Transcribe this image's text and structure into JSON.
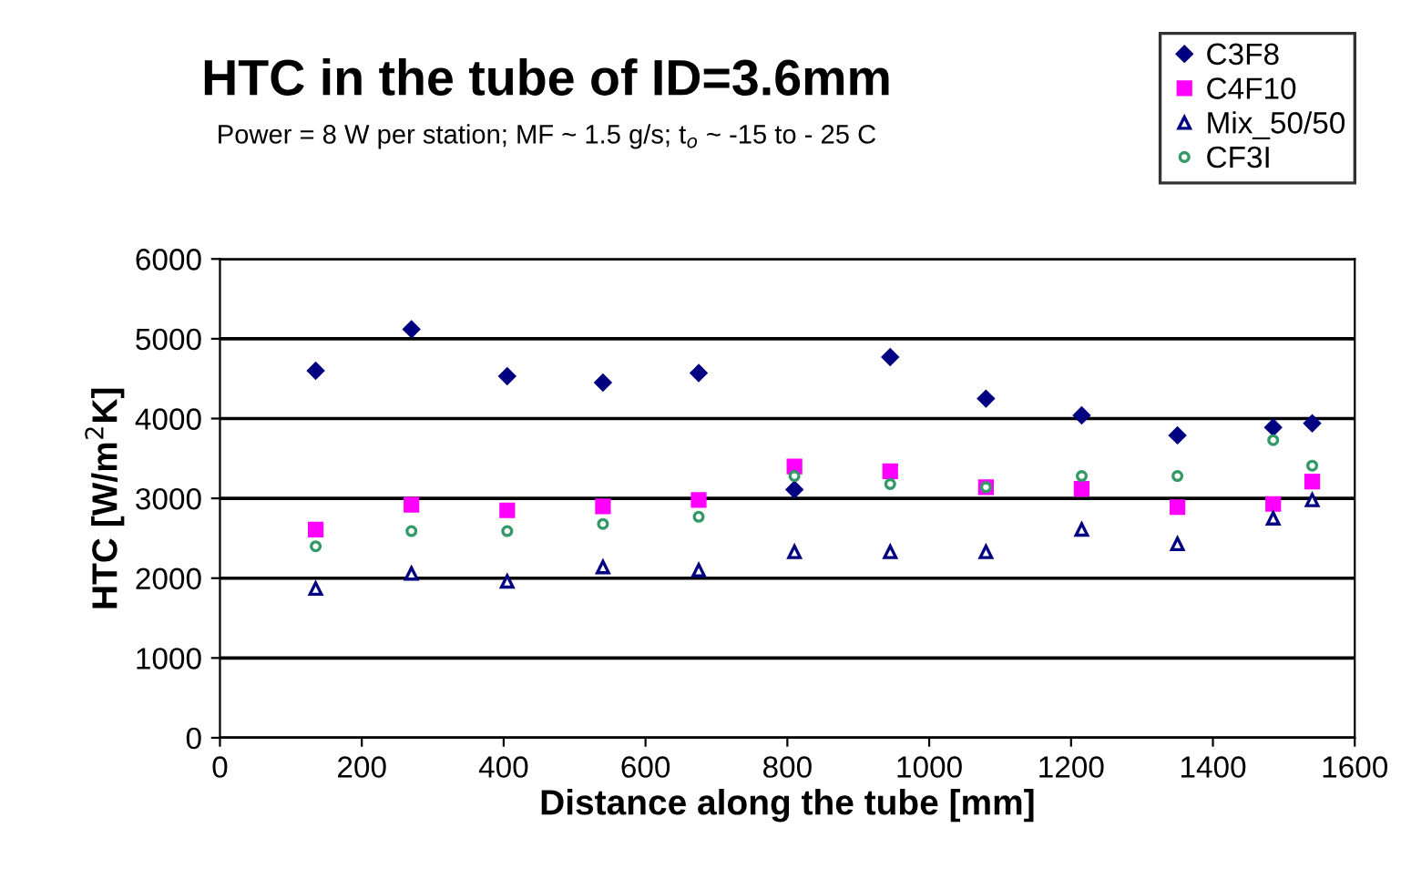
{
  "chart_data": {
    "type": "scatter",
    "title": "HTC in the tube of ID=3.6mm",
    "subtitle": "Power = 8 W per station; MF ~ 1.5 g/s; t$_{o}$ ~ -15 to - 25 C",
    "xlabel": "Distance along the tube [mm]",
    "ylabel": "HTC [W/m$^{2}$K]",
    "x": [
      135,
      270,
      405,
      540,
      675,
      810,
      945,
      1080,
      1215,
      1350,
      1485,
      1540
    ],
    "series": [
      {
        "name": "C3F8",
        "color": "#000080",
        "marker": "diamond",
        "values": [
          4600,
          5120,
          4530,
          4450,
          4570,
          3110,
          4770,
          4250,
          4040,
          3790,
          3890,
          3940
        ]
      },
      {
        "name": "C4F10",
        "color": "#ff00ff",
        "marker": "square",
        "values": [
          2610,
          2920,
          2850,
          2900,
          2980,
          3400,
          3340,
          3140,
          3120,
          2890,
          2930,
          3210
        ]
      },
      {
        "name": "Mix_50/50",
        "color": "#000080",
        "marker": "triangle",
        "values": [
          1870,
          2060,
          1960,
          2140,
          2100,
          2330,
          2330,
          2330,
          2610,
          2430,
          2750,
          2980
        ]
      },
      {
        "name": "CF3I",
        "color": "#339966",
        "marker": "circle",
        "values": [
          2400,
          2590,
          2590,
          2680,
          2770,
          3280,
          3180,
          3140,
          3280,
          3280,
          3730,
          3410
        ]
      }
    ],
    "xlim": [
      0,
      1600
    ],
    "xticks": [
      0,
      200,
      400,
      600,
      800,
      1000,
      1200,
      1400,
      1600
    ],
    "ylim": [
      0,
      6000
    ],
    "yticks": [
      0,
      1000,
      2000,
      3000,
      4000,
      5000,
      6000
    ],
    "grid": "y",
    "legend": "top right"
  }
}
